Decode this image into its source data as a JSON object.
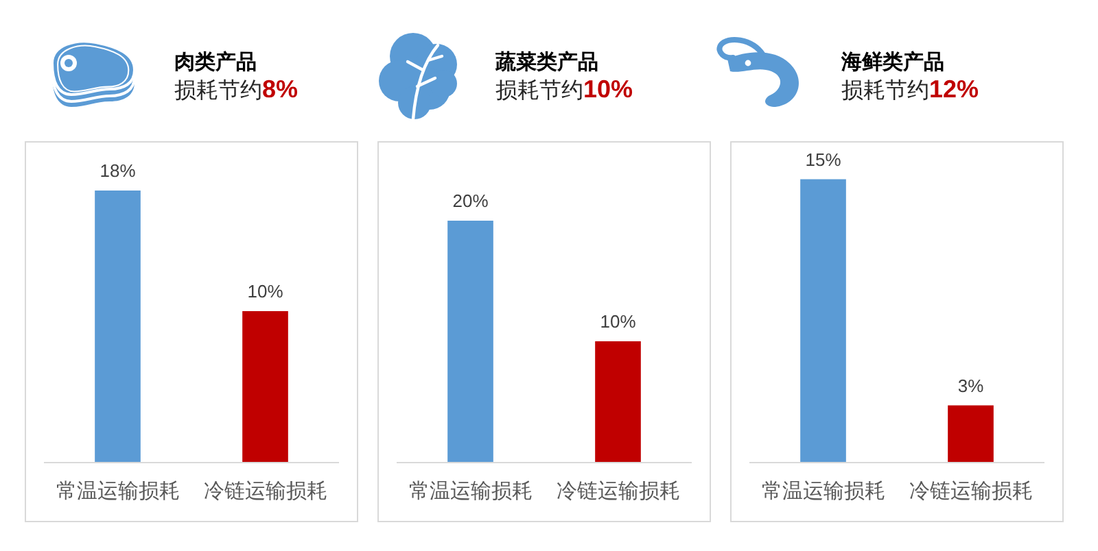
{
  "chart_data": [
    {
      "type": "bar",
      "title": "肉类产品",
      "subtitle": "损耗节约8%",
      "categories": [
        "常温运输损耗",
        "冷链运输损耗"
      ],
      "values": [
        18,
        10
      ],
      "colors": [
        "#5b9bd5",
        "#c00000"
      ],
      "value_labels": [
        "18%",
        "10%"
      ]
    },
    {
      "type": "bar",
      "title": "蔬菜类产品",
      "subtitle": "损耗节约10%",
      "categories": [
        "常温运输损耗",
        "冷链运输损耗"
      ],
      "values": [
        20,
        10
      ],
      "colors": [
        "#5b9bd5",
        "#c00000"
      ],
      "value_labels": [
        "20%",
        "10%"
      ]
    },
    {
      "type": "bar",
      "title": "海鲜类产品",
      "subtitle": "损耗节约12%",
      "categories": [
        "常温运输损耗",
        "冷链运输损耗"
      ],
      "values": [
        15,
        3
      ],
      "colors": [
        "#5b9bd5",
        "#c00000"
      ],
      "value_labels": [
        "15%",
        "3%"
      ]
    }
  ]
}
